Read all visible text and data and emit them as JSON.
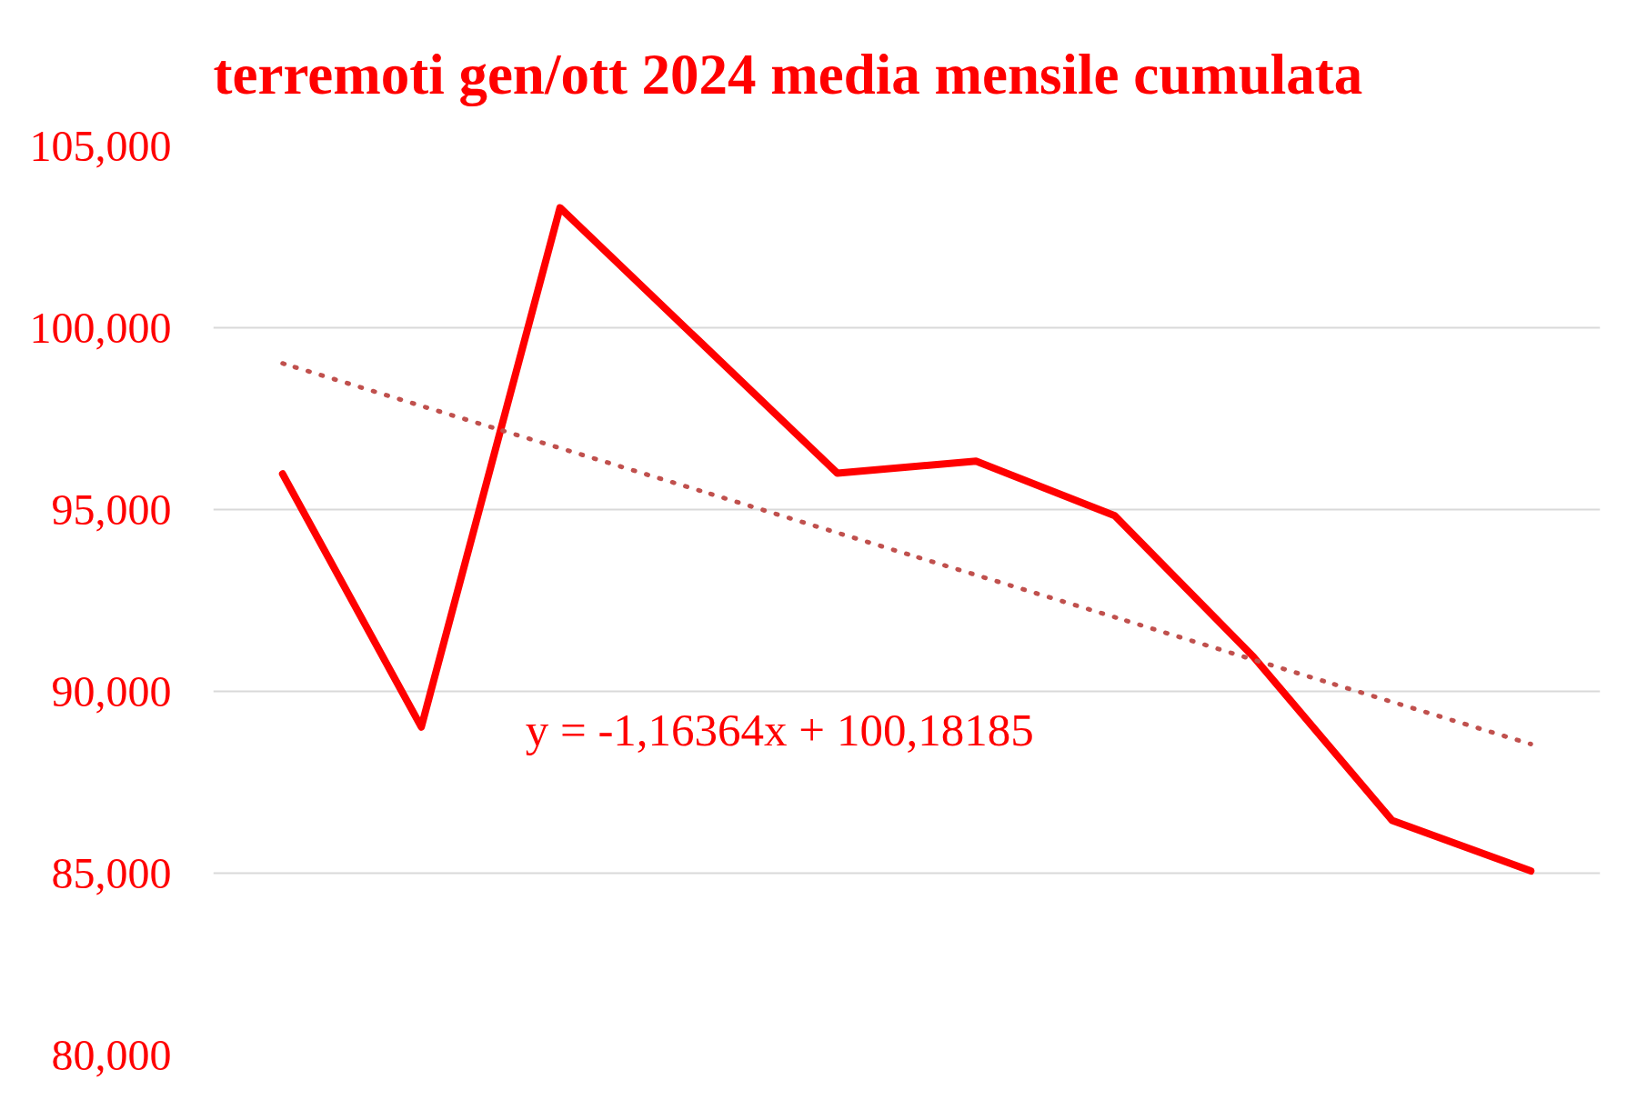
{
  "chart_data": {
    "type": "line",
    "title": "terremoti gen/ott 2024 media mensile cumulata",
    "categories": [
      null,
      null,
      null,
      null,
      null,
      null,
      null,
      null,
      null,
      null
    ],
    "series": [
      {
        "color": "#ff0000",
        "values": [
          95980,
          89020,
          103300,
          99650,
          96000,
          96330,
          94830,
          90950,
          86450,
          85060
        ]
      },
      {
        "type": "line",
        "color": "#c0504d",
        "line_style": "dotted",
        "values": [
          99020,
          97850,
          96690,
          95530,
          94360,
          93200,
          92040,
          90870,
          89710,
          88550
        ]
      }
    ],
    "ylim": [
      80000,
      105000
    ],
    "yticks": [
      {
        "value": 80000,
        "label": "80,000"
      },
      {
        "value": 85000,
        "label": "85,000"
      },
      {
        "value": 90000,
        "label": "90,000"
      },
      {
        "value": 95000,
        "label": "95,000"
      },
      {
        "value": 100000,
        "label": "100,000"
      },
      {
        "value": 105000,
        "label": "105,000"
      }
    ],
    "grid": "y",
    "tick_labels": "y",
    "annotations": [
      "y = -1,16364x + 100,18185"
    ]
  }
}
